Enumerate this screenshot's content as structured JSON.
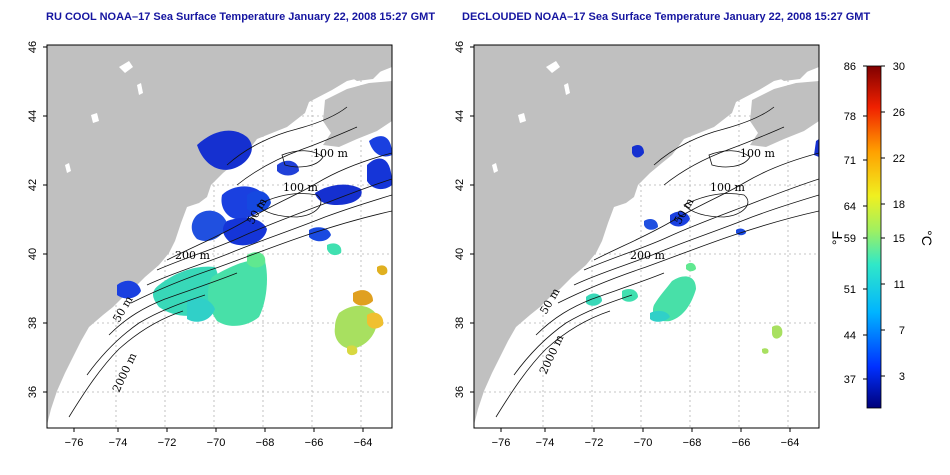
{
  "left_map": {
    "title": "RU COOL NOAA–17 Sea Surface Temperature January 22, 2008 15:27 GMT",
    "contour_labels": [
      "100 m",
      "100 m",
      "50 m",
      "200 m",
      "50 m",
      "2000 m"
    ]
  },
  "right_map": {
    "title": "DECLOUDED NOAA–17 Sea Surface Temperature January 22, 2008 15:27 GMT",
    "contour_labels": [
      "100 m",
      "100 m",
      "50 m",
      "200 m",
      "50 m",
      "2000 m"
    ]
  },
  "axes": {
    "lon_ticks": [
      "−76",
      "−74",
      "−72",
      "−70",
      "−68",
      "−66",
      "−64"
    ],
    "lat_ticks": [
      "36",
      "38",
      "40",
      "42",
      "44",
      "46"
    ]
  },
  "colorbar": {
    "fahrenheit_label": "°F",
    "celsius_label": "°C",
    "fahrenheit_ticks": [
      "86",
      "78",
      "71",
      "64",
      "59",
      "51",
      "44",
      "37"
    ],
    "celsius_ticks": [
      "30",
      "26",
      "22",
      "18",
      "15",
      "11",
      "7",
      "3"
    ]
  },
  "colors": {
    "land": "#c0c0c0",
    "title": "#1515a0",
    "cold": "#1530d0",
    "mild": "#30e0b0",
    "warm": "#e0a020"
  }
}
